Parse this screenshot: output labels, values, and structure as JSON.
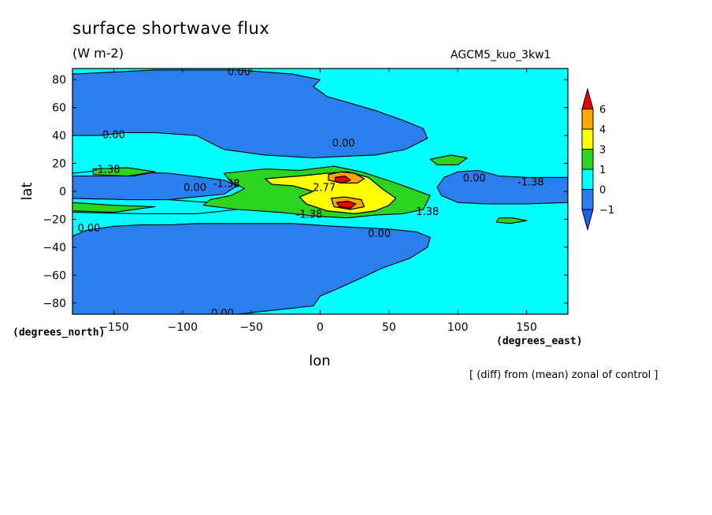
{
  "chart_data": {
    "type": "heatmap",
    "title": "surface shortwave flux",
    "units": "(W m-2)",
    "experiment": "AGCM5_kuo_3kw1",
    "note": "[ (diff) from (mean) zonal of control ]",
    "xlabel": "lon",
    "ylabel": "lat",
    "x_unit_label": "(degrees_east)",
    "y_unit_label": "(degrees_north)",
    "xlim": [
      -180,
      180
    ],
    "ylim": [
      -88,
      88
    ],
    "x_ticks": [
      -150,
      -100,
      -50,
      0,
      50,
      100,
      150
    ],
    "y_ticks": [
      -80,
      -60,
      -40,
      -20,
      0,
      20,
      40,
      60,
      80
    ],
    "colorbar": {
      "levels": [
        -1,
        0,
        1,
        3,
        4,
        6
      ],
      "colors": [
        "#2a7ff0",
        "#00ffff",
        "#2bd420",
        "#ffff00",
        "#ffa500",
        "#ee0000",
        "#1f60e8"
      ],
      "open_ends": true
    },
    "contour_labels": [
      {
        "text": "0.00",
        "lon": -59,
        "lat": 86
      },
      {
        "text": "0.00",
        "lon": -150,
        "lat": 41
      },
      {
        "text": "0.00",
        "lon": 17,
        "lat": 35
      },
      {
        "text": "-1.38",
        "lon": -155,
        "lat": 16
      },
      {
        "text": "-1.38",
        "lon": -68,
        "lat": 6
      },
      {
        "text": "0.00",
        "lon": -91,
        "lat": 3
      },
      {
        "text": "2.77",
        "lon": 3,
        "lat": 3
      },
      {
        "text": "-1.38",
        "lon": -8,
        "lat": -16
      },
      {
        "text": "1.38",
        "lon": 78,
        "lat": -14
      },
      {
        "text": "0.00",
        "lon": 112,
        "lat": 10
      },
      {
        "text": "-1.38",
        "lon": 153,
        "lat": 7
      },
      {
        "text": "0.00",
        "lon": -168,
        "lat": -26
      },
      {
        "text": "0.00",
        "lon": 43,
        "lat": -30
      },
      {
        "text": "0.00",
        "lon": -71,
        "lat": -87
      }
    ],
    "regions": [
      {
        "level": 0,
        "points": [
          [
            -180,
            84
          ],
          [
            -120,
            87
          ],
          [
            -60,
            87
          ],
          [
            -20,
            84
          ],
          [
            0,
            80
          ],
          [
            -5,
            75
          ],
          [
            5,
            68
          ],
          [
            40,
            58
          ],
          [
            60,
            51
          ],
          [
            75,
            45
          ],
          [
            78,
            38
          ],
          [
            62,
            30
          ],
          [
            40,
            26
          ],
          [
            15,
            25
          ],
          [
            -5,
            24
          ],
          [
            -40,
            26
          ],
          [
            -70,
            30
          ],
          [
            -80,
            35
          ],
          [
            -90,
            40
          ],
          [
            -120,
            42
          ],
          [
            -142,
            42
          ],
          [
            -160,
            40
          ],
          [
            -180,
            40
          ]
        ]
      },
      {
        "level": 0,
        "points": [
          [
            -180,
            13
          ],
          [
            -140,
            14
          ],
          [
            -110,
            13
          ],
          [
            -85,
            10
          ],
          [
            -70,
            8
          ],
          [
            -60,
            4
          ],
          [
            -70,
            -2
          ],
          [
            -110,
            -6
          ],
          [
            -140,
            -6
          ],
          [
            -180,
            -5
          ]
        ]
      },
      {
        "level": 0,
        "points": [
          [
            90,
            10
          ],
          [
            100,
            14
          ],
          [
            115,
            15
          ],
          [
            130,
            11
          ],
          [
            150,
            10
          ],
          [
            180,
            10
          ],
          [
            180,
            -8
          ],
          [
            150,
            -9
          ],
          [
            120,
            -9
          ],
          [
            100,
            -8
          ],
          [
            88,
            -3
          ],
          [
            85,
            3
          ]
        ]
      },
      {
        "level": 0,
        "points": [
          [
            -180,
            -32
          ],
          [
            -170,
            -28
          ],
          [
            -150,
            -25
          ],
          [
            -130,
            -24
          ],
          [
            -110,
            -24
          ],
          [
            -90,
            -23
          ],
          [
            -60,
            -23
          ],
          [
            -20,
            -23
          ],
          [
            10,
            -25
          ],
          [
            30,
            -26
          ],
          [
            50,
            -27
          ],
          [
            70,
            -29
          ],
          [
            80,
            -33
          ],
          [
            78,
            -40
          ],
          [
            65,
            -48
          ],
          [
            45,
            -55
          ],
          [
            30,
            -62
          ],
          [
            12,
            -70
          ],
          [
            0,
            -75
          ],
          [
            -5,
            -82
          ],
          [
            -60,
            -88
          ],
          [
            -180,
            -88
          ]
        ]
      },
      {
        "level": 1,
        "points": [
          [
            -180,
            -5
          ],
          [
            -140,
            -6
          ],
          [
            -110,
            -6
          ],
          [
            -80,
            -8
          ],
          [
            -60,
            -13
          ],
          [
            -90,
            -16
          ],
          [
            -130,
            -16
          ],
          [
            -180,
            -15
          ]
        ]
      },
      {
        "level": 1,
        "points": [
          [
            -180,
            13
          ],
          [
            -160,
            15
          ],
          [
            -140,
            16
          ],
          [
            -120,
            14
          ],
          [
            -135,
            11
          ],
          [
            -160,
            11
          ],
          [
            -180,
            11
          ]
        ]
      },
      {
        "level": 2,
        "points": [
          [
            -70,
            13
          ],
          [
            -40,
            16
          ],
          [
            -15,
            15
          ],
          [
            10,
            18
          ],
          [
            30,
            14
          ],
          [
            55,
            6
          ],
          [
            80,
            -3
          ],
          [
            75,
            -13
          ],
          [
            60,
            -16
          ],
          [
            40,
            -17
          ],
          [
            20,
            -19
          ],
          [
            0,
            -18
          ],
          [
            -30,
            -15
          ],
          [
            -60,
            -13
          ],
          [
            -85,
            -10
          ],
          [
            -80,
            -6
          ],
          [
            -65,
            -3
          ],
          [
            -55,
            2
          ],
          [
            -65,
            7
          ]
        ]
      },
      {
        "level": 2,
        "points": [
          [
            -165,
            16
          ],
          [
            -140,
            17
          ],
          [
            -120,
            14
          ],
          [
            -140,
            11
          ],
          [
            -165,
            12
          ]
        ]
      },
      {
        "level": 2,
        "points": [
          [
            -180,
            -8
          ],
          [
            -150,
            -10
          ],
          [
            -120,
            -11
          ],
          [
            -150,
            -15
          ],
          [
            -180,
            -14
          ]
        ]
      },
      {
        "level": 2,
        "points": [
          [
            80,
            23
          ],
          [
            95,
            26
          ],
          [
            107,
            24
          ],
          [
            100,
            19
          ],
          [
            85,
            19
          ]
        ]
      },
      {
        "level": 2,
        "points": [
          [
            128,
            -22
          ],
          [
            138,
            -23
          ],
          [
            150,
            -21
          ],
          [
            140,
            -19
          ],
          [
            130,
            -19
          ]
        ]
      },
      {
        "level": 3,
        "points": [
          [
            -40,
            9
          ],
          [
            -15,
            11
          ],
          [
            5,
            13
          ],
          [
            20,
            14
          ],
          [
            35,
            10
          ],
          [
            45,
            2
          ],
          [
            55,
            -5
          ],
          [
            50,
            -10
          ],
          [
            40,
            -14
          ],
          [
            25,
            -16
          ],
          [
            5,
            -14
          ],
          [
            -10,
            -9
          ],
          [
            -15,
            -4
          ],
          [
            -5,
            0
          ],
          [
            -20,
            4
          ],
          [
            -35,
            5
          ]
        ]
      },
      {
        "level": 4,
        "points": [
          [
            6,
            12
          ],
          [
            15,
            14
          ],
          [
            25,
            13
          ],
          [
            32,
            9
          ],
          [
            27,
            6
          ],
          [
            15,
            6
          ],
          [
            6,
            8
          ]
        ]
      },
      {
        "level": 4,
        "points": [
          [
            8,
            -5
          ],
          [
            18,
            -4
          ],
          [
            30,
            -6
          ],
          [
            32,
            -11
          ],
          [
            22,
            -13
          ],
          [
            10,
            -11
          ]
        ]
      },
      {
        "level": 5,
        "points": [
          [
            11,
            10
          ],
          [
            18,
            11
          ],
          [
            22,
            8
          ],
          [
            16,
            6
          ],
          [
            11,
            7
          ]
        ]
      },
      {
        "level": 5,
        "points": [
          [
            12,
            -8
          ],
          [
            20,
            -7
          ],
          [
            26,
            -9
          ],
          [
            22,
            -12
          ],
          [
            14,
            -11
          ]
        ]
      }
    ]
  }
}
